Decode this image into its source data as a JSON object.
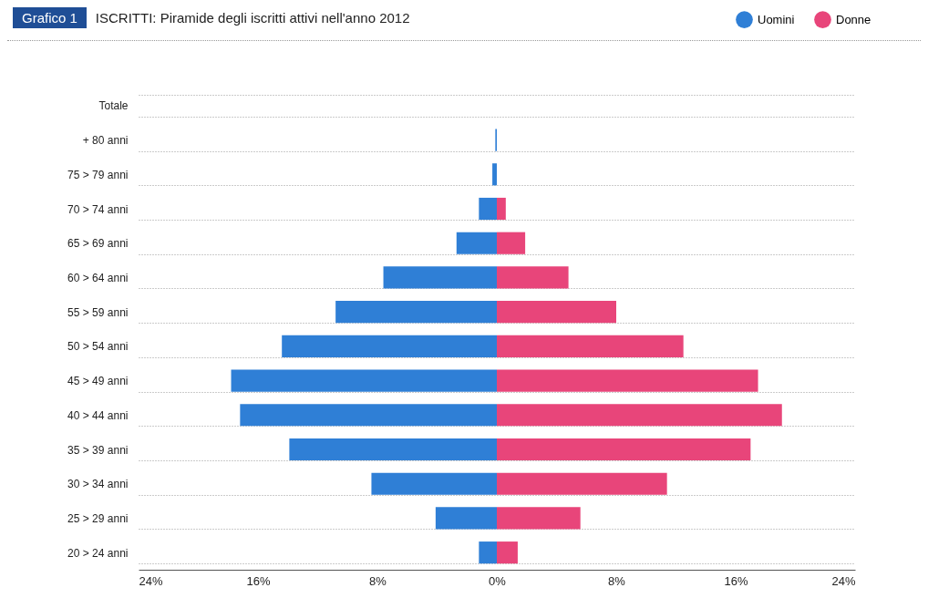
{
  "chart_data": {
    "type": "bar",
    "orientation": "horizontal",
    "title": "ISCRITTI: Piramide degli iscritti attivi nell'anno 2012",
    "annotations": [
      "Grafico 1"
    ],
    "categories": [
      "Totale",
      "+ 80 anni",
      "75 > 79 anni",
      "70 > 74 anni",
      "65 > 69 anni",
      "60 > 64 anni",
      "55 > 59 anni",
      "50 > 54 anni",
      "45 > 49 anni",
      "40 > 44 anni",
      "35 > 39 anni",
      "30 > 34 anni",
      "25 > 29 anni",
      "20 > 24 anni"
    ],
    "series": [
      {
        "name": "Uomini",
        "color": "#2f7fd6",
        "values": [
          null,
          -0.1,
          -0.3,
          -1.2,
          -2.7,
          -7.6,
          -10.8,
          -14.4,
          -17.8,
          -17.2,
          -13.9,
          -8.4,
          -4.1,
          -1.2
        ]
      },
      {
        "name": "Donne",
        "color": "#e8457a",
        "values": [
          null,
          null,
          null,
          0.6,
          1.9,
          4.8,
          8.0,
          12.5,
          17.5,
          19.1,
          17.0,
          11.4,
          5.6,
          1.4
        ]
      }
    ],
    "xlim": [
      -24,
      24
    ],
    "xticks": [
      {
        "value": -24,
        "label": "24%"
      },
      {
        "value": -16,
        "label": "16%"
      },
      {
        "value": -8,
        "label": "8%"
      },
      {
        "value": 0,
        "label": "0%"
      },
      {
        "value": 8,
        "label": "8%"
      },
      {
        "value": 16,
        "label": "16%"
      },
      {
        "value": 24,
        "label": "24%"
      }
    ],
    "stacked": true,
    "grid": "y",
    "legend": "top right"
  }
}
